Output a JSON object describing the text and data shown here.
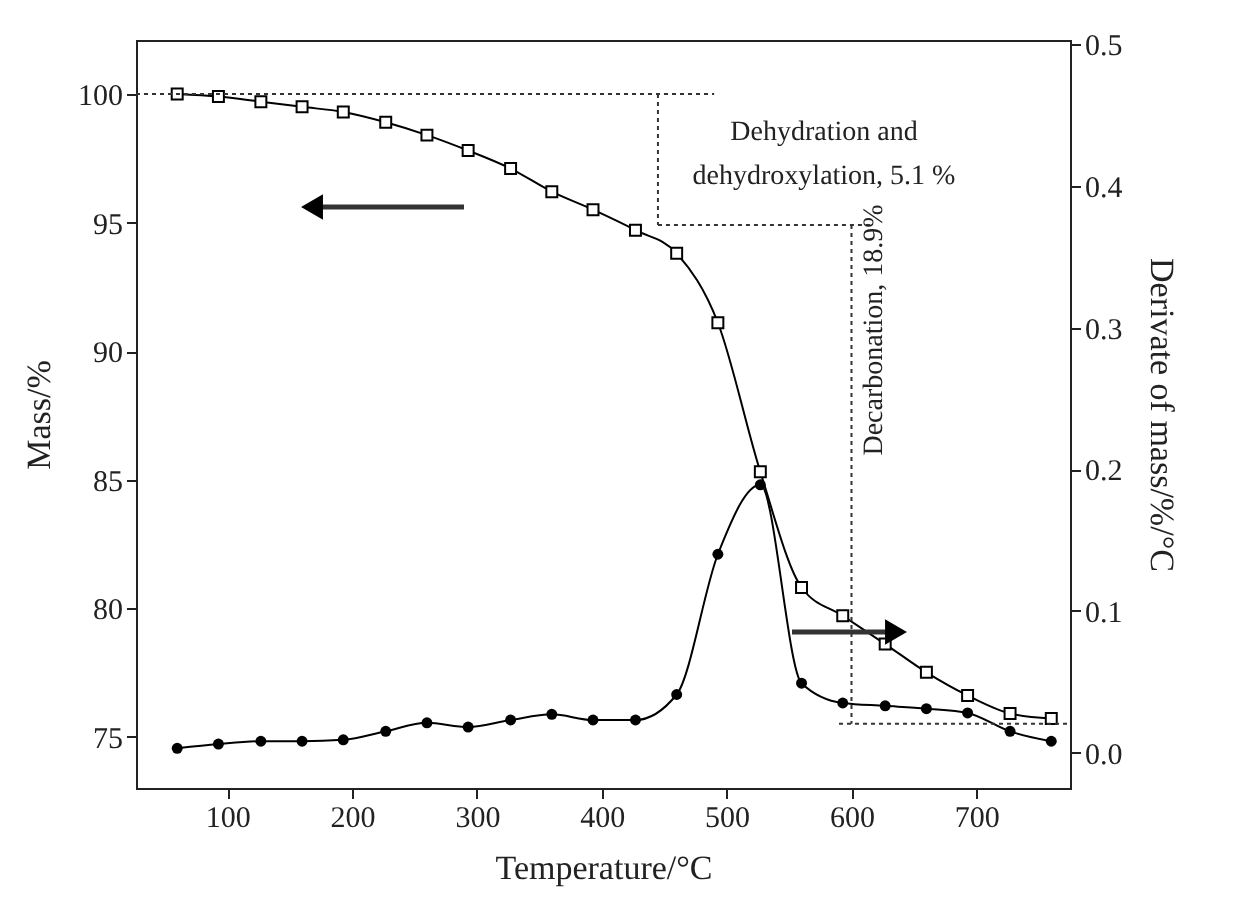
{
  "chart_data": {
    "type": "line",
    "xlabel": "Temperature/°C",
    "ylabel": "Mass/%",
    "y2label": "Derivate of mass/%/°C",
    "x": [
      60,
      93,
      127,
      160,
      193,
      227,
      260,
      293,
      327,
      360,
      393,
      427,
      460,
      493,
      527,
      560,
      593,
      627,
      660,
      693,
      727,
      760
    ],
    "series": [
      {
        "color": "#000000",
        "marker": "square",
        "values": [
          100.0,
          99.9,
          99.7,
          99.5,
          99.3,
          98.9,
          98.4,
          97.8,
          97.1,
          96.2,
          95.5,
          94.7,
          93.8,
          91.1,
          85.3,
          80.8,
          79.7,
          78.6,
          77.5,
          76.6,
          75.9,
          75.7
        ]
      },
      {
        "color": "#000000",
        "marker": "circle",
        "axis": "y2",
        "values": [
          0.003,
          0.006,
          0.008,
          0.008,
          0.009,
          0.015,
          0.021,
          0.018,
          0.023,
          0.027,
          0.023,
          0.023,
          0.041,
          0.14,
          0.189,
          0.049,
          0.035,
          0.033,
          0.031,
          0.028,
          0.015,
          0.008
        ]
      },
      {
        "color": "#333333",
        "line_style": "dotted",
        "marker": "none",
        "x": [
          27,
          490
        ],
        "values": [
          100,
          100
        ]
      },
      {
        "color": "#333333",
        "line_style": "dotted",
        "marker": "none",
        "x": [
          445,
          445
        ],
        "values": [
          100,
          94.9
        ]
      },
      {
        "color": "#333333",
        "line_style": "dotted",
        "marker": "none",
        "x": [
          445,
          615
        ],
        "values": [
          94.9,
          94.9
        ]
      },
      {
        "color": "#333333",
        "line_style": "dotted",
        "marker": "none",
        "x": [
          600,
          600
        ],
        "values": [
          94.9,
          75.5
        ]
      },
      {
        "color": "#333333",
        "line_style": "dotted",
        "marker": "none",
        "x": [
          590,
          775
        ],
        "values": [
          75.5,
          75.5
        ]
      }
    ],
    "xlim": [
      27,
      775
    ],
    "xticks": [
      100,
      200,
      300,
      400,
      500,
      600,
      700
    ],
    "ylim": [
      73,
      102.1
    ],
    "yticks": [
      75,
      80,
      85,
      90,
      95,
      100
    ],
    "y2lim": [
      -0.025,
      0.503
    ],
    "y2ticks": [
      {
        "value": 0,
        "label": "0.0"
      },
      0.1,
      0.2,
      0.3,
      0.4,
      0.5
    ],
    "annotations": [
      "Dehydration and\ndehydroxylation, 5.1 %",
      "Decarbonation, 18.9%"
    ],
    "grid": false
  }
}
